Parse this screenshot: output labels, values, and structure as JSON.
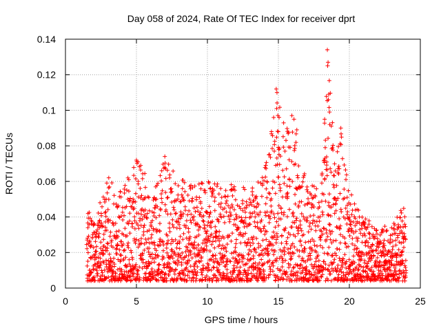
{
  "chart_data": {
    "type": "scatter",
    "title": "Day 058 of 2024, Rate Of TEC Index for receiver dprt",
    "xlabel": "GPS time / hours",
    "ylabel": "ROTI / TECUs",
    "xlim": [
      0,
      25
    ],
    "ylim": [
      0,
      0.14
    ],
    "x_ticks": [
      0,
      5,
      10,
      15,
      20,
      25
    ],
    "x_tick_labels": [
      "0",
      "5",
      "10",
      "15",
      "20",
      "25"
    ],
    "y_ticks": [
      0,
      0.02,
      0.04,
      0.06,
      0.08,
      0.1,
      0.12,
      0.14
    ],
    "y_tick_labels": [
      "0",
      "0.02",
      "0.04",
      "0.06",
      "0.08",
      "0.1",
      "0.12",
      "0.14"
    ],
    "grid": true,
    "marker": "+",
    "series": [
      {
        "name": "ROTI",
        "color": "#ff0000",
        "x_range": [
          1.5,
          24.0
        ],
        "envelope": [
          [
            1.5,
            0.045
          ],
          [
            2.0,
            0.04
          ],
          [
            3.0,
            0.062
          ],
          [
            4.0,
            0.055
          ],
          [
            4.5,
            0.065
          ],
          [
            5.0,
            0.072
          ],
          [
            5.5,
            0.068
          ],
          [
            6.0,
            0.05
          ],
          [
            7.0,
            0.074
          ],
          [
            8.0,
            0.062
          ],
          [
            9.0,
            0.058
          ],
          [
            10.0,
            0.06
          ],
          [
            11.0,
            0.058
          ],
          [
            12.0,
            0.06
          ],
          [
            13.0,
            0.055
          ],
          [
            14.0,
            0.065
          ],
          [
            14.9,
            0.112
          ],
          [
            15.5,
            0.088
          ],
          [
            16.0,
            0.097
          ],
          [
            16.5,
            0.08
          ],
          [
            17.0,
            0.06
          ],
          [
            18.0,
            0.055
          ],
          [
            18.5,
            0.134
          ],
          [
            19.0,
            0.07
          ],
          [
            19.4,
            0.09
          ],
          [
            20.0,
            0.056
          ],
          [
            21.0,
            0.042
          ],
          [
            22.0,
            0.032
          ],
          [
            23.0,
            0.038
          ],
          [
            24.0,
            0.047
          ]
        ],
        "peaks": [
          [
            14.85,
            0.112
          ],
          [
            14.9,
            0.11
          ],
          [
            14.88,
            0.101
          ],
          [
            15.05,
            0.096
          ],
          [
            15.0,
            0.088
          ],
          [
            15.95,
            0.097
          ],
          [
            16.1,
            0.095
          ],
          [
            16.3,
            0.089
          ],
          [
            18.45,
            0.134
          ],
          [
            18.5,
            0.127
          ],
          [
            18.47,
            0.125
          ],
          [
            18.55,
            0.109
          ],
          [
            18.52,
            0.106
          ],
          [
            18.6,
            0.099
          ],
          [
            19.4,
            0.09
          ],
          [
            18.62,
            0.092
          ],
          [
            7.0,
            0.074
          ],
          [
            5.0,
            0.072
          ],
          [
            5.3,
            0.069
          ],
          [
            3.05,
            0.062
          ]
        ]
      }
    ]
  }
}
